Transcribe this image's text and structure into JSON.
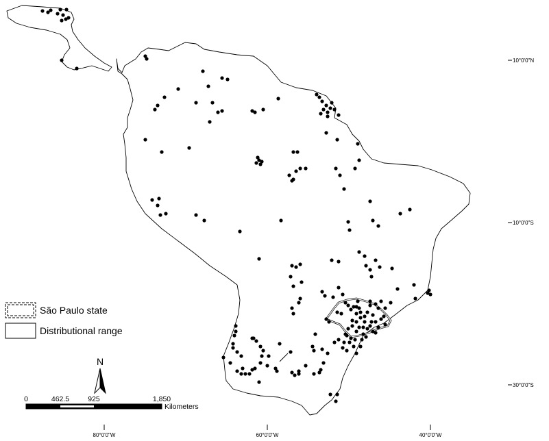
{
  "legend": {
    "items": [
      {
        "label": "São Paulo state",
        "symbol": "double-dashed-box"
      },
      {
        "label": "Distributional range",
        "symbol": "outline-box"
      }
    ]
  },
  "north_arrow": {
    "label": "N"
  },
  "scale_bar": {
    "ticks": [
      "0",
      "462.5",
      "925",
      "1,850"
    ],
    "unit": "Kilometers"
  },
  "latitude_labels": [
    "10°0'0\"N",
    "10°0'0\"S",
    "30°0'0\"S"
  ],
  "longitude_labels": [
    "80°0'0\"W",
    "60°0'0\"W",
    "40°0'0\"W"
  ],
  "colors": {
    "background": "#ffffff",
    "outline": "#000000",
    "points": "#000000"
  }
}
